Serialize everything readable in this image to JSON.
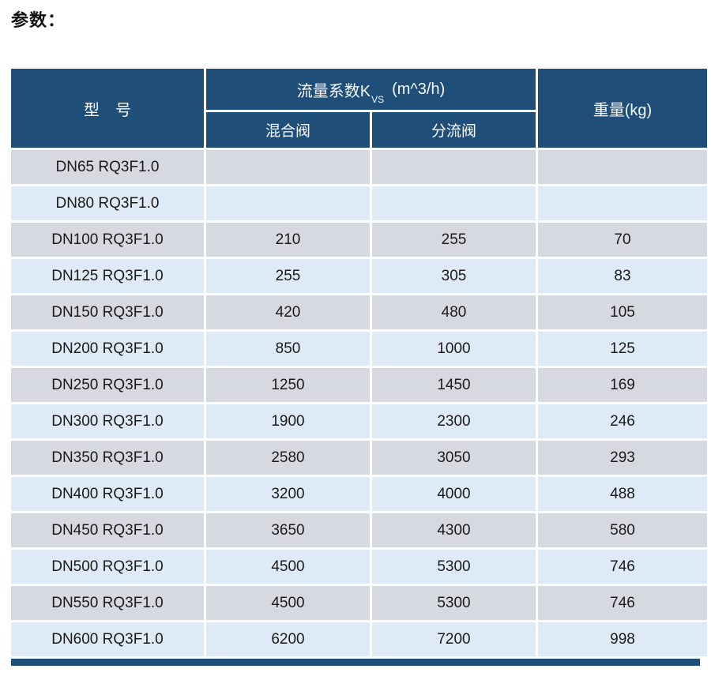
{
  "page": {
    "title": "参数："
  },
  "table": {
    "header": {
      "model": "型　号",
      "kvs_prefix": "流量系数K",
      "kvs_sub": "VS",
      "kvs_unit": "(m^3/h)",
      "mixing": "混合阀",
      "diverting": "分流阀",
      "weight": "重量(kg)"
    },
    "rows": [
      {
        "model": "DN65 RQ3F1.0",
        "mixing": "",
        "diverting": "",
        "weight": ""
      },
      {
        "model": "DN80 RQ3F1.0",
        "mixing": "",
        "diverting": "",
        "weight": ""
      },
      {
        "model": "DN100 RQ3F1.0",
        "mixing": "210",
        "diverting": "255",
        "weight": "70"
      },
      {
        "model": "DN125 RQ3F1.0",
        "mixing": "255",
        "diverting": "305",
        "weight": "83"
      },
      {
        "model": "DN150 RQ3F1.0",
        "mixing": "420",
        "diverting": "480",
        "weight": "105"
      },
      {
        "model": "DN200 RQ3F1.0",
        "mixing": "850",
        "diverting": "1000",
        "weight": "125"
      },
      {
        "model": "DN250 RQ3F1.0",
        "mixing": "1250",
        "diverting": "1450",
        "weight": "169"
      },
      {
        "model": "DN300 RQ3F1.0",
        "mixing": "1900",
        "diverting": "2300",
        "weight": "246"
      },
      {
        "model": "DN350 RQ3F1.0",
        "mixing": "2580",
        "diverting": "3050",
        "weight": "293"
      },
      {
        "model": "DN400 RQ3F1.0",
        "mixing": "3200",
        "diverting": "4000",
        "weight": "488"
      },
      {
        "model": "DN450 RQ3F1.0",
        "mixing": "3650",
        "diverting": "4300",
        "weight": "580"
      },
      {
        "model": "DN500 RQ3F1.0",
        "mixing": "4500",
        "diverting": "5300",
        "weight": "746"
      },
      {
        "model": "DN550 RQ3F1.0",
        "mixing": "4500",
        "diverting": "5300",
        "weight": "746"
      },
      {
        "model": "DN600 RQ3F1.0",
        "mixing": "6200",
        "diverting": "7200",
        "weight": "998"
      }
    ]
  },
  "colors": {
    "header_bg": "#1F4E79",
    "header_text": "#F7FAFD",
    "row_gray": "#D6DAE0",
    "row_blue": "#DEEAF6",
    "separator": "#FFFFFF",
    "body_text": "#1A1A1A"
  }
}
